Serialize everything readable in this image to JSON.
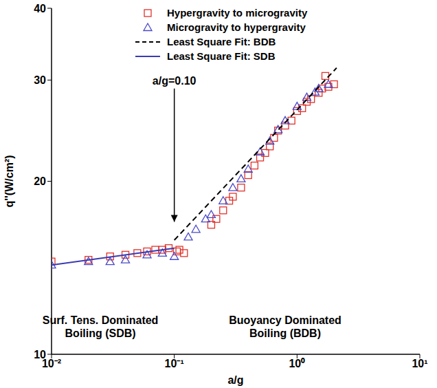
{
  "chart_data": {
    "type": "scatter",
    "x_label": "a/g",
    "y_label": "q''(W/cm²)",
    "log": true,
    "grid": false,
    "legend": "top",
    "xlim": [
      0.01,
      10
    ],
    "xticks": [
      {
        "value": 0.01,
        "label": "10⁻²"
      },
      {
        "value": 0.1,
        "label": "10⁻¹"
      },
      {
        "value": 1,
        "label": "10⁰"
      },
      {
        "value": 10,
        "label": "10¹"
      }
    ],
    "ylim": [
      10,
      40
    ],
    "yticks": [
      10,
      20,
      30,
      40
    ],
    "series": [
      {
        "name": "Hypergravity to microgravity",
        "type": "scatter",
        "marker": "square",
        "color": "#e0322b",
        "x": [
          0.01,
          0.02,
          0.03,
          0.04,
          0.05,
          0.06,
          0.07,
          0.08,
          0.09,
          0.105,
          0.11,
          0.12,
          0.2,
          0.22,
          0.25,
          0.28,
          0.3,
          0.35,
          0.4,
          0.45,
          0.5,
          0.55,
          0.6,
          0.65,
          0.7,
          0.8,
          0.9,
          1.0,
          1.1,
          1.2,
          1.3,
          1.5,
          1.6,
          1.7,
          1.8,
          2.0
        ],
        "values": [
          14.5,
          14.6,
          14.8,
          14.9,
          15.0,
          15.1,
          15.2,
          15.2,
          15.3,
          15.1,
          15.2,
          15.0,
          16.8,
          17.2,
          17.8,
          18.5,
          18.8,
          19.5,
          20.5,
          21.3,
          22.0,
          22.4,
          23.0,
          23.8,
          24.5,
          25.0,
          25.5,
          26.5,
          26.8,
          27.5,
          27.8,
          28.5,
          29.0,
          30.5,
          29.2,
          29.5
        ]
      },
      {
        "name": "Microgravity to hypergravity",
        "type": "scatter",
        "marker": "triangle",
        "color": "#4848c8",
        "x": [
          0.01,
          0.02,
          0.03,
          0.04,
          0.06,
          0.08,
          0.1,
          0.13,
          0.15,
          0.18,
          0.2,
          0.25,
          0.3,
          0.35,
          0.4,
          0.5,
          0.6,
          0.7,
          0.8,
          1.0,
          1.2,
          1.4,
          1.5,
          1.8
        ],
        "values": [
          14.3,
          14.5,
          14.5,
          14.6,
          14.9,
          15.0,
          14.8,
          16.0,
          16.5,
          17.2,
          17.5,
          18.5,
          19.5,
          20.2,
          21.0,
          22.5,
          23.5,
          24.6,
          25.5,
          27.0,
          28.0,
          28.6,
          29.0,
          29.5
        ]
      },
      {
        "name": "Least Square Fit: BDB",
        "type": "line",
        "line_style": "dashed",
        "color": "#000000",
        "x": [
          0.1,
          2.1
        ],
        "values": [
          15.8,
          31.5
        ]
      },
      {
        "name": "Least Square Fit: SDB",
        "type": "line",
        "line_style": "solid",
        "color": "#3a3ab4",
        "x": [
          0.01,
          0.1
        ],
        "values": [
          14.3,
          15.3
        ]
      }
    ],
    "annotations": [
      {
        "text": "a/g=0.10",
        "xy": [
          0.1,
          17
        ],
        "xytext": [
          0.1,
          29
        ]
      },
      {
        "text": "Surf. Tens. Dominated Boiling (SDB)",
        "xy": [
          0.025,
          11.3
        ]
      },
      {
        "text": "Buoyancy Dominated Boiling (BDB)",
        "xy": [
          0.8,
          11.3
        ]
      }
    ]
  }
}
